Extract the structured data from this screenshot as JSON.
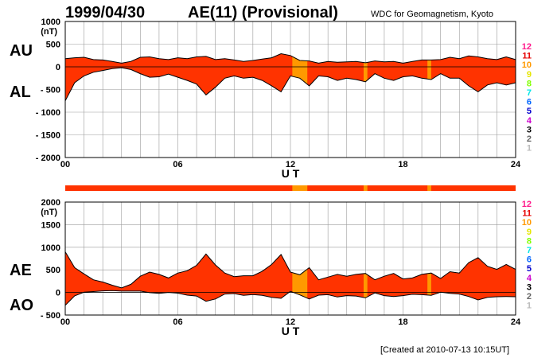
{
  "header": {
    "date": "1999/04/30",
    "title": "AE(11) (Provisional)",
    "source": "WDC for Geomagnetism, Kyoto",
    "created": "[Created at 2010-07-13 10:15UT]"
  },
  "colors": {
    "fill_main": "#ff3300",
    "fill_alt": "#ff9900",
    "grid": "#999999",
    "trace": "#000000"
  },
  "station_legend": [
    {
      "label": "12",
      "color": "#ff1a8c"
    },
    {
      "label": "11",
      "color": "#e60000"
    },
    {
      "label": "10",
      "color": "#ff9900"
    },
    {
      "label": "9",
      "color": "#e6e600"
    },
    {
      "label": "8",
      "color": "#80ff00"
    },
    {
      "label": "7",
      "color": "#00e6e6"
    },
    {
      "label": "6",
      "color": "#0066ff"
    },
    {
      "label": "5",
      "color": "#0000cc"
    },
    {
      "label": "4",
      "color": "#cc00cc"
    },
    {
      "label": "3",
      "color": "#000000"
    },
    {
      "label": "2",
      "color": "#666666"
    },
    {
      "label": "1",
      "color": "#bbbbbb"
    }
  ],
  "chart_data": [
    {
      "type": "area",
      "panel": "AU/AL",
      "side_labels": [
        "AU",
        "AL"
      ],
      "ylabel_unit": "(nT)",
      "xlabel": "U T",
      "ylim": [
        -2000,
        1000
      ],
      "yticks": [
        1000,
        500,
        0,
        -500,
        -1000,
        -1500,
        -2000
      ],
      "yticklabels": [
        "1000",
        "500",
        "0",
        "- 500",
        "- 1000",
        "- 1500",
        "- 2000"
      ],
      "xlim": [
        0,
        24
      ],
      "xticks": [
        0,
        6,
        12,
        18,
        24
      ],
      "xticklabels": [
        "00",
        "06",
        "12",
        "18",
        "24"
      ],
      "grid": true,
      "highlight_hours": [
        [
          12.1,
          12.9
        ],
        [
          15.9,
          16.1
        ],
        [
          19.3,
          19.5
        ]
      ],
      "series": [
        {
          "name": "AU",
          "x": [
            0,
            0.5,
            1,
            1.5,
            2,
            2.5,
            3,
            3.5,
            4,
            4.5,
            5,
            5.5,
            6,
            6.5,
            7,
            7.5,
            8,
            8.5,
            9,
            9.5,
            10,
            10.5,
            11,
            11.5,
            12,
            12.5,
            13,
            13.5,
            14,
            14.5,
            15,
            15.5,
            16,
            16.5,
            17,
            17.5,
            18,
            18.5,
            19,
            19.5,
            20,
            20.5,
            21,
            21.5,
            22,
            22.5,
            23,
            23.5,
            24
          ],
          "values": [
            180,
            200,
            210,
            160,
            150,
            120,
            80,
            120,
            210,
            220,
            180,
            160,
            200,
            180,
            220,
            230,
            160,
            180,
            150,
            120,
            140,
            170,
            200,
            290,
            250,
            140,
            130,
            80,
            120,
            100,
            110,
            120,
            90,
            130,
            110,
            120,
            80,
            120,
            150,
            150,
            160,
            210,
            180,
            240,
            220,
            180,
            160,
            220,
            160
          ]
        },
        {
          "name": "AL",
          "x": [
            0,
            0.5,
            1,
            1.5,
            2,
            2.5,
            3,
            3.5,
            4,
            4.5,
            5,
            5.5,
            6,
            6.5,
            7,
            7.5,
            8,
            8.5,
            9,
            9.5,
            10,
            10.5,
            11,
            11.5,
            12,
            12.5,
            13,
            13.5,
            14,
            14.5,
            15,
            15.5,
            16,
            16.5,
            17,
            17.5,
            18,
            18.5,
            19,
            19.5,
            20,
            20.5,
            21,
            21.5,
            22,
            22.5,
            23,
            23.5,
            24
          ],
          "values": [
            -750,
            -350,
            -200,
            -120,
            -80,
            -40,
            -20,
            -60,
            -150,
            -230,
            -220,
            -160,
            -230,
            -300,
            -380,
            -620,
            -450,
            -250,
            -200,
            -250,
            -230,
            -300,
            -420,
            -550,
            -200,
            -250,
            -420,
            -200,
            -220,
            -300,
            -250,
            -280,
            -330,
            -150,
            -250,
            -300,
            -220,
            -200,
            -250,
            -280,
            -150,
            -250,
            -250,
            -420,
            -550,
            -400,
            -350,
            -400,
            -350
          ]
        }
      ]
    },
    {
      "type": "area",
      "panel": "AE/AO",
      "side_labels": [
        "AE",
        "AO"
      ],
      "ylabel_unit": "(nT)",
      "xlabel": "U T",
      "ylim": [
        -500,
        2000
      ],
      "yticks": [
        2000,
        1500,
        1000,
        500,
        0,
        -500
      ],
      "yticklabels": [
        "2000",
        "1500",
        "1000",
        "500",
        "0",
        "- 500"
      ],
      "xlim": [
        0,
        24
      ],
      "xticks": [
        0,
        6,
        12,
        18,
        24
      ],
      "xticklabels": [
        "00",
        "06",
        "12",
        "18",
        "24"
      ],
      "grid": true,
      "highlight_hours": [
        [
          12.1,
          12.9
        ],
        [
          15.9,
          16.1
        ],
        [
          19.3,
          19.5
        ]
      ],
      "series": [
        {
          "name": "AE",
          "x": [
            0,
            0.5,
            1,
            1.5,
            2,
            2.5,
            3,
            3.5,
            4,
            4.5,
            5,
            5.5,
            6,
            6.5,
            7,
            7.5,
            8,
            8.5,
            9,
            9.5,
            10,
            10.5,
            11,
            11.5,
            12,
            12.5,
            13,
            13.5,
            14,
            14.5,
            15,
            15.5,
            16,
            16.5,
            17,
            17.5,
            18,
            18.5,
            19,
            19.5,
            20,
            20.5,
            21,
            21.5,
            22,
            22.5,
            23,
            23.5,
            24
          ],
          "values": [
            900,
            550,
            410,
            280,
            230,
            160,
            100,
            180,
            360,
            450,
            400,
            320,
            430,
            480,
            600,
            850,
            610,
            430,
            350,
            370,
            370,
            470,
            620,
            840,
            450,
            390,
            550,
            280,
            340,
            400,
            360,
            400,
            420,
            280,
            360,
            420,
            300,
            320,
            400,
            430,
            310,
            460,
            430,
            660,
            770,
            580,
            510,
            620,
            510
          ]
        },
        {
          "name": "AO",
          "x": [
            0,
            0.5,
            1,
            1.5,
            2,
            2.5,
            3,
            3.5,
            4,
            4.5,
            5,
            5.5,
            6,
            6.5,
            7,
            7.5,
            8,
            8.5,
            9,
            9.5,
            10,
            10.5,
            11,
            11.5,
            12,
            12.5,
            13,
            13.5,
            14,
            14.5,
            15,
            15.5,
            16,
            16.5,
            17,
            17.5,
            18,
            18.5,
            19,
            19.5,
            20,
            20.5,
            21,
            21.5,
            22,
            22.5,
            23,
            23.5,
            24
          ],
          "values": [
            -285,
            -75,
            5,
            20,
            35,
            40,
            30,
            30,
            30,
            -5,
            -20,
            0,
            -15,
            -60,
            -80,
            -195,
            -145,
            -35,
            -25,
            -65,
            -45,
            -65,
            -110,
            -130,
            25,
            -55,
            -145,
            -60,
            -50,
            -100,
            -70,
            -80,
            -120,
            -10,
            -70,
            -90,
            -70,
            -40,
            -50,
            -65,
            5,
            -20,
            -35,
            -90,
            -165,
            -110,
            -95,
            -90,
            -95
          ]
        }
      ]
    }
  ]
}
